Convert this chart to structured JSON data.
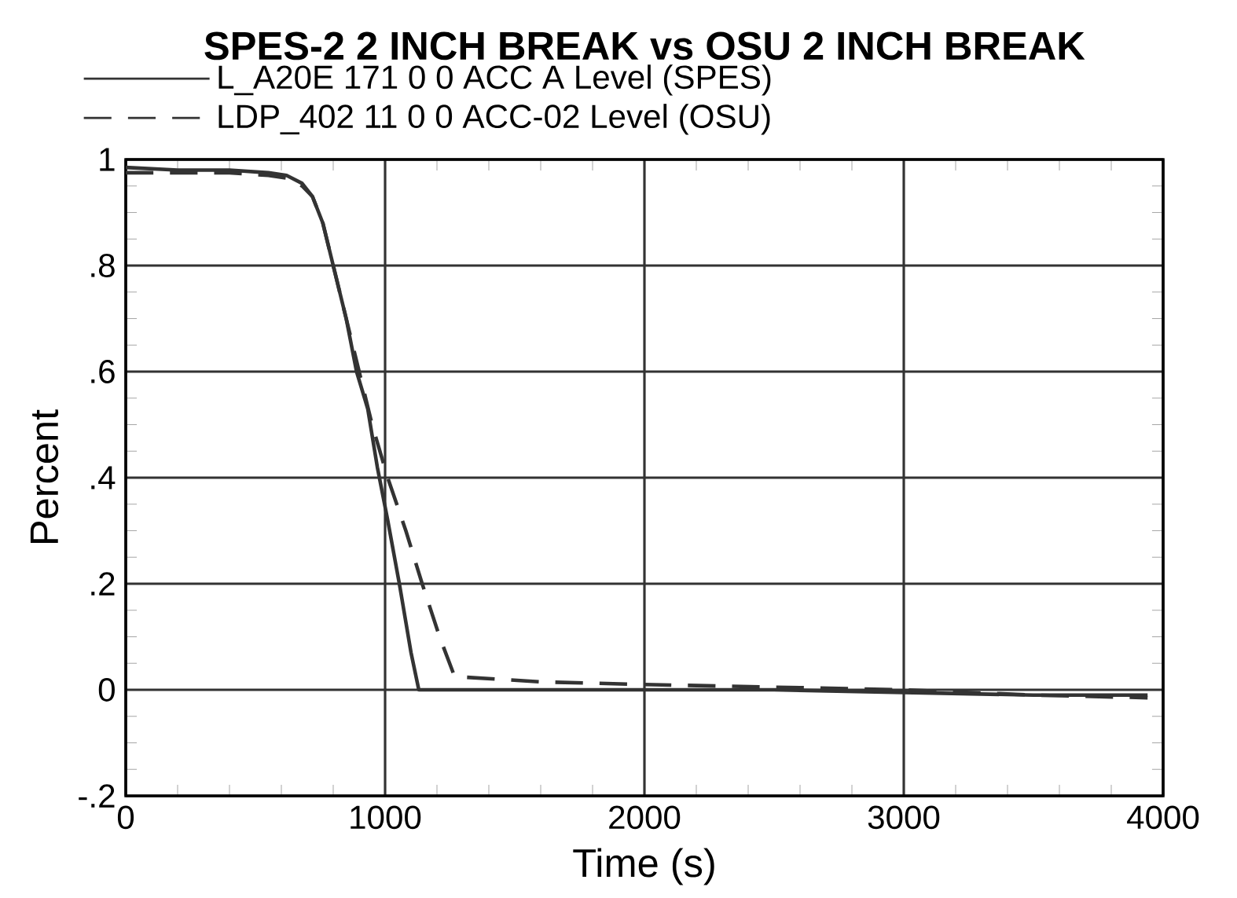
{
  "chart_data": {
    "type": "line",
    "title": "SPES-2 2 INCH BREAK vs OSU 2 INCH BREAK",
    "xlabel": "Time (s)",
    "ylabel": "Percent",
    "xlim": [
      0,
      4000
    ],
    "xticks": [
      0,
      1000,
      2000,
      3000,
      4000
    ],
    "ylim": [
      -0.2,
      1
    ],
    "yticks": [
      {
        "value": -0.2,
        "label": "-.2"
      },
      0,
      {
        "value": 0.2,
        "label": ".2"
      },
      {
        "value": 0.4,
        "label": ".4"
      },
      {
        "value": 0.6,
        "label": ".6"
      },
      {
        "value": 0.8,
        "label": ".8"
      },
      1
    ],
    "grid": true,
    "legend": "top left",
    "series": [
      {
        "name": "L_A20E 171 0 0 ACC A Level (SPES)",
        "color": "#333333",
        "line_style": "solid",
        "x": [
          0,
          200,
          400,
          550,
          620,
          680,
          720,
          760,
          800,
          850,
          890,
          933,
          970,
          1010,
          1055,
          1100,
          1130,
          1500,
          2000,
          2500,
          3000,
          3500,
          3940
        ],
        "values": [
          0.985,
          0.98,
          0.98,
          0.975,
          0.97,
          0.955,
          0.93,
          0.88,
          0.8,
          0.7,
          0.6,
          0.53,
          0.42,
          0.32,
          0.2,
          0.07,
          0.0,
          0.0,
          0.0,
          0.0,
          -0.005,
          -0.01,
          -0.01
        ]
      },
      {
        "name": "LDP_402 11 0 0 ACC-02 Level (OSU)",
        "color": "#333333",
        "line_style": "dashed",
        "x": [
          0,
          200,
          400,
          550,
          620,
          680,
          720,
          760,
          800,
          850,
          900,
          950,
          1010,
          1080,
          1143,
          1210,
          1268,
          1600,
          2000,
          2500,
          3000,
          3500,
          3940
        ],
        "values": [
          0.975,
          0.975,
          0.975,
          0.97,
          0.965,
          0.95,
          0.93,
          0.88,
          0.8,
          0.7,
          0.6,
          0.5,
          0.4,
          0.3,
          0.2,
          0.1,
          0.025,
          0.015,
          0.01,
          0.005,
          0.0,
          -0.01,
          -0.015
        ]
      }
    ]
  }
}
